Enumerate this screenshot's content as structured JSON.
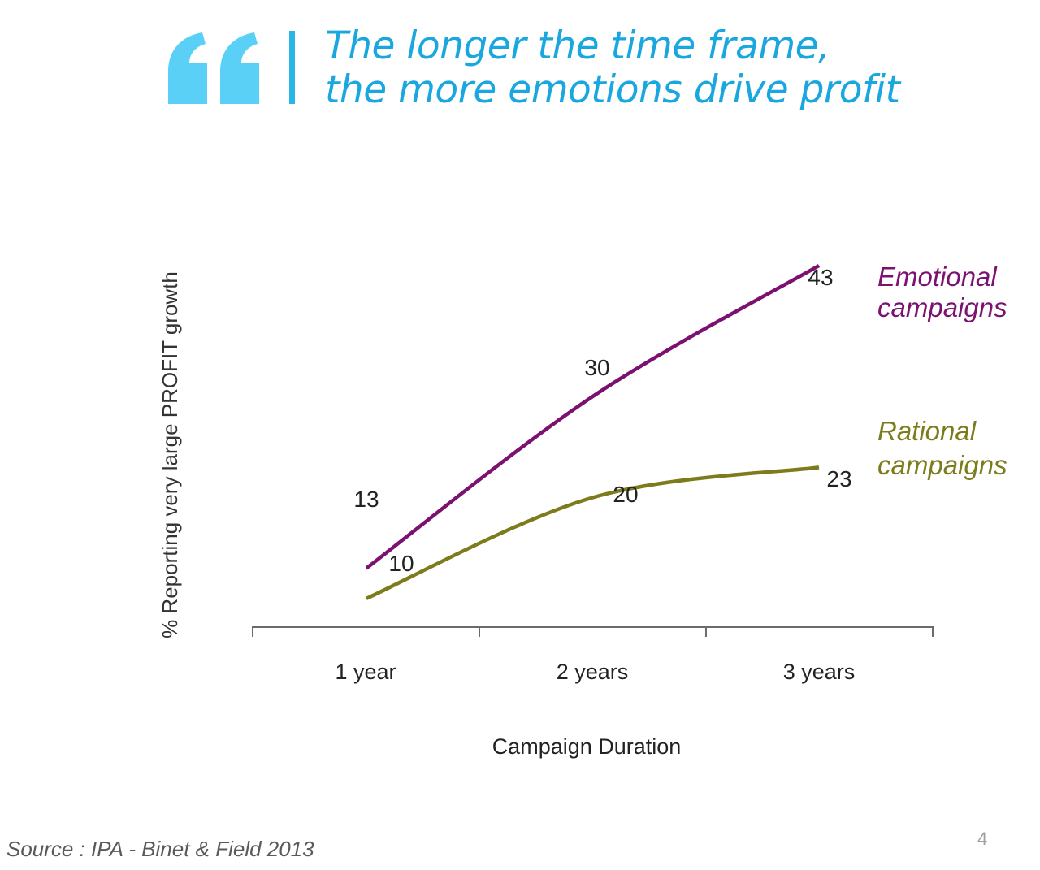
{
  "header": {
    "title_line1": "The longer the time frame,",
    "title_line2": "the more emotions drive profit",
    "accent_color": "#29b6e8"
  },
  "chart_data": {
    "type": "line",
    "categories": [
      "1 year",
      "2 years",
      "3 years"
    ],
    "series": [
      {
        "name": "Emotional campaigns",
        "name_line1": "Emotional",
        "name_line2": "campaigns",
        "values": [
          13,
          30,
          43
        ],
        "color": "#7b1170"
      },
      {
        "name": "Rational campaigns",
        "name_line1": "Rational",
        "name_line2": "campaigns",
        "values": [
          10,
          20,
          23
        ],
        "color": "#7c7c1c"
      }
    ],
    "data_labels": {
      "emotional": [
        "13",
        "30",
        "43"
      ],
      "rational": [
        "10",
        "20",
        "23"
      ]
    },
    "xlabel": "Campaign Duration",
    "ylabel": "% Reporting very large PROFIT growth",
    "ylim": [
      0,
      50
    ],
    "grid": false,
    "legend": "right"
  },
  "footer": {
    "source": "Source : IPA - Binet & Field 2013",
    "page_number": "4"
  }
}
